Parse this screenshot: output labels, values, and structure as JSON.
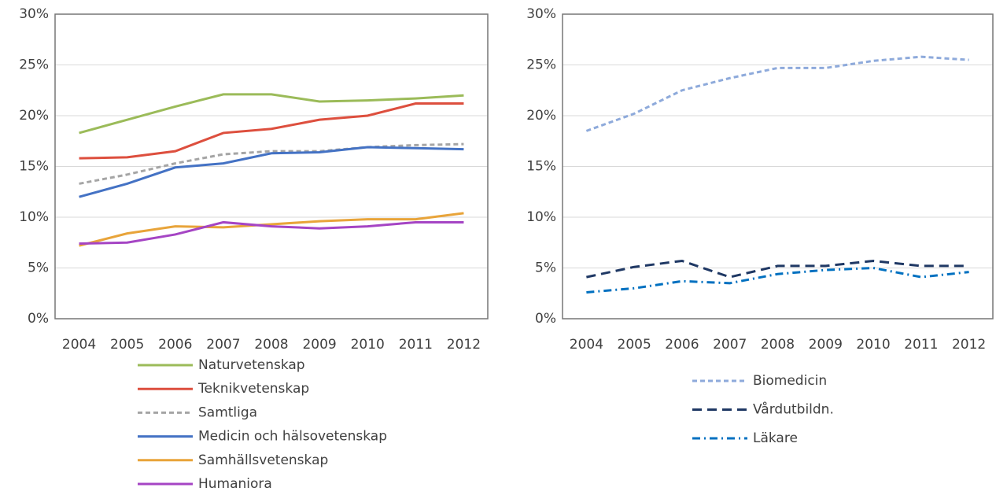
{
  "chart_data": [
    {
      "type": "line",
      "categories": [
        "2004",
        "2005",
        "2006",
        "2007",
        "2008",
        "2009",
        "2010",
        "2011",
        "2012"
      ],
      "ylim": [
        0,
        30
      ],
      "yticks": [
        {
          "value": 0,
          "label": "0%"
        },
        {
          "value": 5,
          "label": "5%"
        },
        {
          "value": 10,
          "label": "10%"
        },
        {
          "value": 15,
          "label": "15%"
        },
        {
          "value": 20,
          "label": "20%"
        },
        {
          "value": 25,
          "label": "25%"
        },
        {
          "value": 30,
          "label": "30%"
        }
      ],
      "grid": true,
      "legend": "bottom",
      "series": [
        {
          "name": "Naturvetenskap",
          "color": "#9bbb59",
          "dash": "solid",
          "values": [
            18.3,
            19.6,
            20.9,
            22.1,
            22.1,
            21.4,
            21.5,
            21.7,
            22.0
          ]
        },
        {
          "name": "Teknikvetenskap",
          "color": "#dd4f3e",
          "dash": "solid",
          "values": [
            15.8,
            15.9,
            16.5,
            18.3,
            18.7,
            19.6,
            20.0,
            21.2,
            21.2
          ]
        },
        {
          "name": "Samtliga",
          "color": "#a5a5a5",
          "dash": "dashed",
          "values": [
            13.3,
            14.2,
            15.3,
            16.2,
            16.5,
            16.5,
            16.9,
            17.1,
            17.2
          ]
        },
        {
          "name": "Medicin och hälsovetenskap",
          "color": "#4472c4",
          "dash": "solid",
          "values": [
            12.0,
            13.3,
            14.9,
            15.3,
            16.3,
            16.4,
            16.9,
            16.8,
            16.7
          ]
        },
        {
          "name": "Samhällsvetenskap",
          "color": "#e8a43a",
          "dash": "solid",
          "values": [
            7.2,
            8.4,
            9.1,
            9.0,
            9.3,
            9.6,
            9.8,
            9.8,
            10.4
          ]
        },
        {
          "name": "Humaniora",
          "color": "#a545c4",
          "dash": "solid",
          "values": [
            7.4,
            7.5,
            8.3,
            9.5,
            9.1,
            8.9,
            9.1,
            9.5,
            9.5
          ]
        }
      ]
    },
    {
      "type": "line",
      "categories": [
        "2004",
        "2005",
        "2006",
        "2007",
        "2008",
        "2009",
        "2010",
        "2011",
        "2012"
      ],
      "ylim": [
        0,
        30
      ],
      "yticks": [
        {
          "value": 0,
          "label": "0%"
        },
        {
          "value": 5,
          "label": "5%"
        },
        {
          "value": 10,
          "label": "10%"
        },
        {
          "value": 15,
          "label": "15%"
        },
        {
          "value": 20,
          "label": "20%"
        },
        {
          "value": 25,
          "label": "25%"
        },
        {
          "value": 30,
          "label": "30%"
        }
      ],
      "grid": true,
      "legend": "bottom",
      "series": [
        {
          "name": "Biomedicin",
          "color": "#8eaadb",
          "dash": "dashed",
          "values": [
            18.5,
            20.2,
            22.5,
            23.7,
            24.7,
            24.7,
            25.4,
            25.8,
            25.5
          ]
        },
        {
          "name": "Vårdutbildn.",
          "color": "#1f3864",
          "dash": "longdash",
          "values": [
            4.1,
            5.1,
            5.7,
            4.1,
            5.2,
            5.2,
            5.7,
            5.2,
            5.2
          ]
        },
        {
          "name": "Läkare",
          "color": "#0070c0",
          "dash": "dashdot",
          "values": [
            2.6,
            3.0,
            3.7,
            3.5,
            4.4,
            4.8,
            5.0,
            4.1,
            4.6
          ]
        }
      ]
    }
  ]
}
